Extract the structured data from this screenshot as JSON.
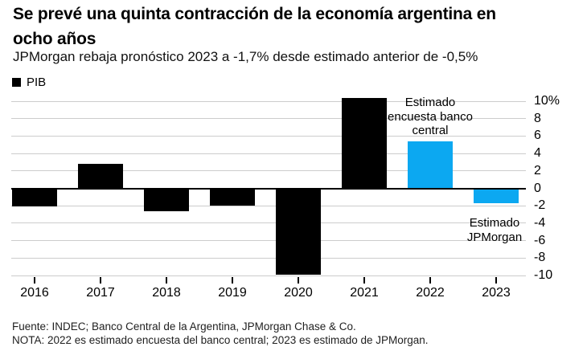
{
  "header": {
    "title_lines": [
      "Se prevé una quinta contracción de la economía argentina en",
      "ocho años"
    ],
    "subtitle": "JPMorgan rebaja pronóstico 2023 a -1,7% desde estimado anterior de -0,5%"
  },
  "legend": {
    "label": "PIB",
    "swatch_color": "#000000"
  },
  "chart_data": {
    "type": "bar",
    "categories": [
      "2016",
      "2017",
      "2018",
      "2019",
      "2020",
      "2021",
      "2022",
      "2023"
    ],
    "values": [
      -2.1,
      2.8,
      -2.6,
      -2.0,
      -9.9,
      10.4,
      5.4,
      -1.7
    ],
    "point_types": [
      "actual",
      "actual",
      "actual",
      "actual",
      "actual",
      "actual",
      "estimate",
      "estimate"
    ],
    "colors": {
      "actual": "#000000",
      "estimate": "#0ca8f1"
    },
    "gridline_color": "#cccccc",
    "ylim": [
      -10,
      10
    ],
    "y_ticks": [
      {
        "value": 10,
        "label": "10%"
      },
      {
        "value": 8,
        "label": "8"
      },
      {
        "value": 6,
        "label": "6"
      },
      {
        "value": 4,
        "label": "4"
      },
      {
        "value": 2,
        "label": "2"
      },
      {
        "value": 0,
        "label": "0"
      },
      {
        "value": -2,
        "label": "-2"
      },
      {
        "value": -4,
        "label": "-4"
      },
      {
        "value": -6,
        "label": "-6"
      },
      {
        "value": -8,
        "label": "-8"
      },
      {
        "value": -10,
        "label": "-10"
      }
    ],
    "grid": true,
    "legend_position": "top-left",
    "axis_side": "right",
    "annotations": [
      {
        "text": "Estimado\nencuesta banco\ncentral",
        "anchor_category": "2022"
      },
      {
        "text": "Estimado\nJPMorgan",
        "anchor_category": "2023"
      }
    ]
  },
  "footer": {
    "source": "Fuente: INDEC; Banco Central de la Argentina, JPMorgan Chase & Co.",
    "note": "NOTA: 2022 es estimado encuesta del banco central; 2023 es estimado de JPMorgan."
  }
}
